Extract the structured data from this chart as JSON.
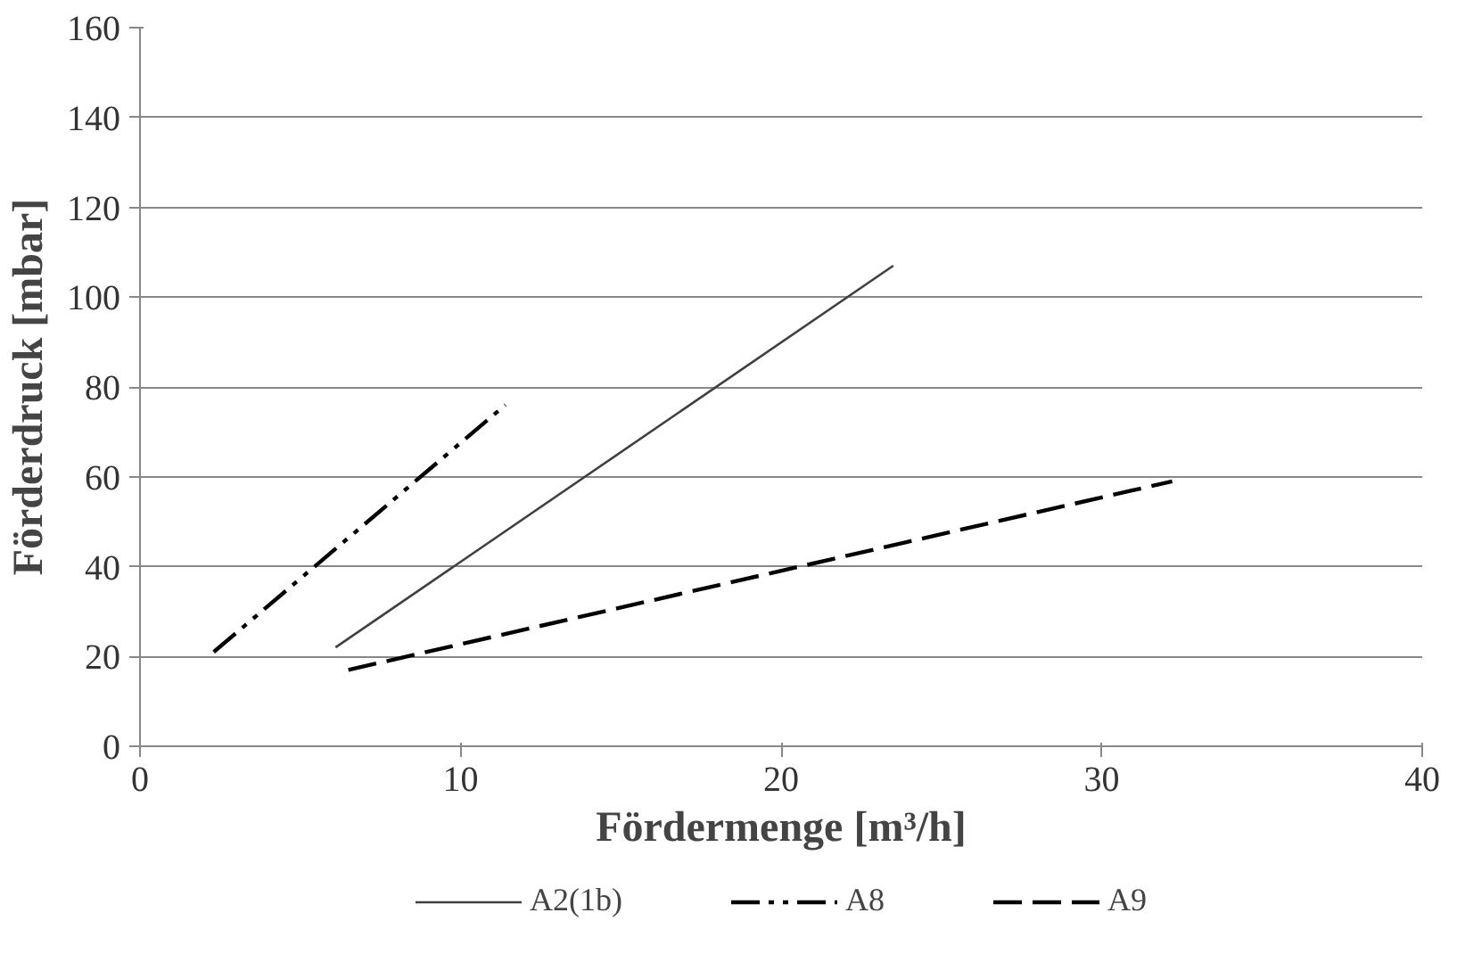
{
  "chart_data": {
    "type": "line",
    "xlabel": "Fördermenge [m³/h]",
    "ylabel": "Förderdruck [mbar]",
    "xlim": [
      0,
      40
    ],
    "xticks": [
      0,
      10,
      20,
      30,
      40
    ],
    "ylim": [
      0,
      160
    ],
    "yticks": [
      0,
      20,
      40,
      60,
      80,
      100,
      120,
      140,
      160
    ],
    "grid": "y",
    "legend": "bottom",
    "marker": "none",
    "series": [
      {
        "name": "A2(1b)",
        "color": "#404040",
        "x": [
          6.1,
          23.5
        ],
        "values": [
          22,
          107
        ],
        "line_style": "solid"
      },
      {
        "name": "A8",
        "color": "#000000",
        "x": [
          2.3,
          11.4
        ],
        "values": [
          21,
          76
        ],
        "line_style": "dashdot"
      },
      {
        "name": "A9",
        "color": "#000000",
        "x": [
          6.5,
          32.2
        ],
        "values": [
          17,
          59
        ],
        "line_style": "dashed"
      }
    ]
  }
}
